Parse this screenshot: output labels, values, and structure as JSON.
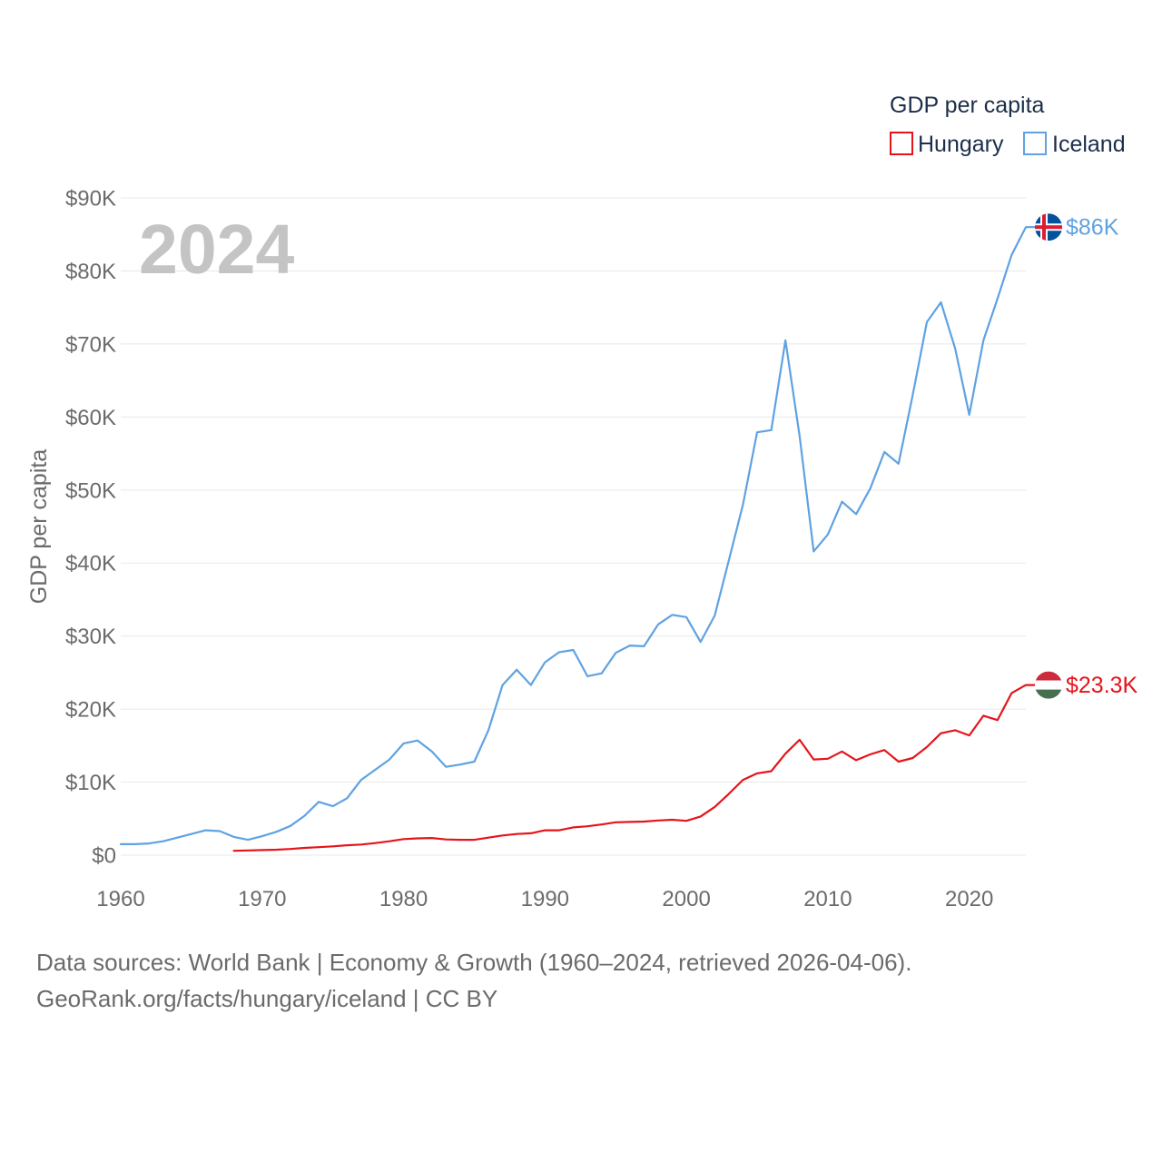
{
  "chart_data": {
    "type": "line",
    "legend_title": "GDP per capita",
    "ylabel": "GDP per capita",
    "year_watermark": "2024",
    "xlim": [
      1960,
      2024
    ],
    "ylim": [
      0,
      90000
    ],
    "grid": true,
    "xticks": {
      "values": [
        1960,
        1970,
        1980,
        1990,
        2000,
        2010,
        2020
      ],
      "labels": [
        "1960",
        "1970",
        "1980",
        "1990",
        "2000",
        "2010",
        "2020"
      ]
    },
    "yticks": {
      "values": [
        0,
        10000,
        20000,
        30000,
        40000,
        50000,
        60000,
        70000,
        80000,
        90000
      ],
      "labels": [
        "$0",
        "$10K",
        "$20K",
        "$30K",
        "$40K",
        "$50K",
        "$60K",
        "$70K",
        "$80K",
        "$90K"
      ]
    },
    "x": [
      1960,
      1961,
      1962,
      1963,
      1964,
      1965,
      1966,
      1967,
      1968,
      1969,
      1970,
      1971,
      1972,
      1973,
      1974,
      1975,
      1976,
      1977,
      1978,
      1979,
      1980,
      1981,
      1982,
      1983,
      1984,
      1985,
      1986,
      1987,
      1988,
      1989,
      1990,
      1991,
      1992,
      1993,
      1994,
      1995,
      1996,
      1997,
      1998,
      1999,
      2000,
      2001,
      2002,
      2003,
      2004,
      2005,
      2006,
      2007,
      2008,
      2009,
      2010,
      2011,
      2012,
      2013,
      2014,
      2015,
      2016,
      2017,
      2018,
      2019,
      2020,
      2021,
      2022,
      2023,
      2024
    ],
    "series": [
      {
        "name": "Hungary",
        "color": "#e5141b",
        "flag_icon": "hungary-flag-icon",
        "end_label": "$23.3K",
        "values": [
          null,
          null,
          null,
          null,
          null,
          null,
          null,
          null,
          600,
          650,
          700,
          750,
          850,
          1000,
          1100,
          1200,
          1350,
          1450,
          1650,
          1900,
          2200,
          2300,
          2350,
          2150,
          2100,
          2100,
          2400,
          2700,
          2900,
          3000,
          3400,
          3400,
          3800,
          3950,
          4200,
          4500,
          4550,
          4600,
          4750,
          4850,
          4700,
          5300,
          6600,
          8400,
          10300,
          11200,
          11500,
          13900,
          15800,
          13100,
          13200,
          14200,
          13000,
          13800,
          14400,
          12800,
          13300,
          14800,
          16700,
          17100,
          16400,
          19100,
          18500,
          22200,
          23300
        ]
      },
      {
        "name": "Iceland",
        "color": "#5fa2e2",
        "flag_icon": "iceland-flag-icon",
        "end_label": "$86K",
        "values": [
          1500,
          1500,
          1600,
          1900,
          2400,
          2900,
          3400,
          3300,
          2500,
          2100,
          2600,
          3200,
          4000,
          5400,
          7300,
          6700,
          7800,
          10300,
          11700,
          13100,
          15300,
          15700,
          14200,
          12100,
          12400,
          12800,
          17100,
          23300,
          25400,
          23300,
          26400,
          27800,
          28100,
          24500,
          24900,
          27700,
          28700,
          28600,
          31600,
          32900,
          32600,
          29200,
          32800,
          40400,
          48000,
          57900,
          58200,
          70500,
          57400,
          41600,
          43900,
          48400,
          46700,
          50200,
          55200,
          53600,
          63000,
          73000,
          75700,
          69400,
          60300,
          70500,
          76200,
          82200,
          86000
        ]
      }
    ]
  },
  "footer": {
    "sources": "Data sources: World Bank | Economy & Growth (1960–2024, retrieved 2026-04-06).",
    "credit": "GeoRank.org/facts/hungary/iceland | CC BY"
  }
}
